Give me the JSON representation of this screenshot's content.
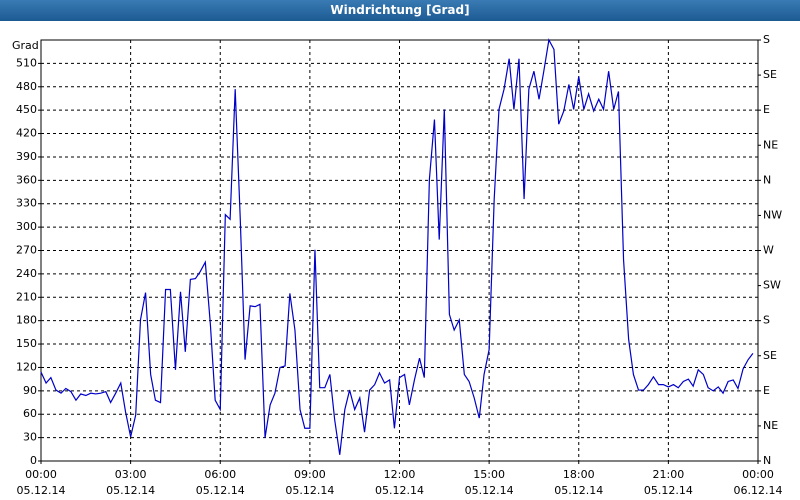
{
  "chart_data": {
    "type": "line",
    "title": "Windrichtung [Grad]",
    "ylabel": "Grad",
    "xlim": [
      0,
      24
    ],
    "xticks": [
      {
        "value": 0,
        "label": "00:00"
      },
      {
        "value": 3,
        "label": "03:00"
      },
      {
        "value": 6,
        "label": "06:00"
      },
      {
        "value": 9,
        "label": "09:00"
      },
      {
        "value": 12,
        "label": "12:00"
      },
      {
        "value": 15,
        "label": "15:00"
      },
      {
        "value": 18,
        "label": "18:00"
      },
      {
        "value": 21,
        "label": "21:00"
      },
      {
        "value": 24,
        "label": "00:00"
      }
    ],
    "xtick_dates": [
      "05.12.14",
      "05.12.14",
      "05.12.14",
      "05.12.14",
      "05.12.14",
      "05.12.14",
      "05.12.14",
      "05.12.14",
      "06.12.14"
    ],
    "ylim": [
      0,
      540
    ],
    "yticks": [
      0,
      30,
      60,
      90,
      120,
      150,
      180,
      210,
      240,
      270,
      300,
      330,
      360,
      390,
      420,
      450,
      480,
      510
    ],
    "y2lim": [
      0,
      540
    ],
    "y2ticks": [
      {
        "value": 0,
        "label": "N"
      },
      {
        "value": 45,
        "label": "NE"
      },
      {
        "value": 90,
        "label": "E"
      },
      {
        "value": 135,
        "label": "SE"
      },
      {
        "value": 180,
        "label": "S"
      },
      {
        "value": 225,
        "label": "SW"
      },
      {
        "value": 270,
        "label": "W"
      },
      {
        "value": 315,
        "label": "NW"
      },
      {
        "value": 360,
        "label": "N"
      },
      {
        "value": 405,
        "label": "NE"
      },
      {
        "value": 450,
        "label": "E"
      },
      {
        "value": 495,
        "label": "SE"
      },
      {
        "value": 540,
        "label": "S"
      }
    ],
    "grid": true,
    "color": "#0000c8",
    "x": [
      0,
      0.17,
      0.33,
      0.5,
      0.67,
      0.83,
      1,
      1.17,
      1.33,
      1.5,
      1.67,
      1.83,
      2,
      2.17,
      2.33,
      2.5,
      2.67,
      2.83,
      3,
      3.17,
      3.33,
      3.5,
      3.67,
      3.83,
      4,
      4.17,
      4.33,
      4.5,
      4.67,
      4.83,
      5,
      5.17,
      5.33,
      5.5,
      5.67,
      5.83,
      6,
      6.17,
      6.33,
      6.5,
      6.67,
      6.83,
      7,
      7.17,
      7.33,
      7.5,
      7.67,
      7.83,
      8,
      8.17,
      8.33,
      8.5,
      8.67,
      8.83,
      9,
      9.17,
      9.33,
      9.5,
      9.67,
      9.83,
      10,
      10.17,
      10.33,
      10.5,
      10.67,
      10.83,
      11,
      11.17,
      11.33,
      11.5,
      11.67,
      11.83,
      12,
      12.17,
      12.33,
      12.5,
      12.67,
      12.83,
      13,
      13.17,
      13.33,
      13.5,
      13.67,
      13.83,
      14,
      14.17,
      14.33,
      14.5,
      14.67,
      14.83,
      15,
      15.17,
      15.33,
      15.5,
      15.67,
      15.83,
      16,
      16.17,
      16.33,
      16.5,
      16.67,
      16.83,
      17,
      17.17,
      17.33,
      17.5,
      17.67,
      17.83,
      18,
      18.17,
      18.33,
      18.5,
      18.67,
      18.83,
      19,
      19.17,
      19.33,
      19.5,
      19.67,
      19.83,
      20,
      20.17,
      20.33,
      20.5,
      20.67,
      20.83,
      21,
      21.17,
      21.33,
      21.5,
      21.67,
      21.83,
      22,
      22.17,
      22.33,
      22.5,
      22.67,
      22.83,
      23,
      23.17,
      23.33,
      23.5,
      23.67,
      23.83
    ],
    "values": [
      114,
      100,
      107,
      91,
      87,
      93,
      89,
      78,
      86,
      84,
      87,
      86,
      87,
      89,
      75,
      87,
      100,
      63,
      31,
      59,
      181,
      216,
      111,
      78,
      75,
      220,
      220,
      117,
      217,
      140,
      233,
      234,
      243,
      255,
      175,
      78,
      66,
      316,
      310,
      477,
      310,
      130,
      199,
      198,
      201,
      30,
      72,
      87,
      120,
      122,
      215,
      168,
      66,
      42,
      42,
      271,
      94,
      94,
      111,
      53,
      8,
      66,
      91,
      66,
      81,
      37,
      91,
      98,
      113,
      100,
      104,
      42,
      107,
      111,
      72,
      104,
      132,
      107,
      361,
      438,
      284,
      451,
      188,
      168,
      181,
      111,
      102,
      81,
      55,
      111,
      143,
      336,
      451,
      477,
      516,
      451,
      516,
      336,
      477,
      500,
      464,
      500,
      540,
      528,
      432,
      449,
      483,
      451,
      493,
      451,
      471,
      449,
      464,
      451,
      500,
      451,
      474,
      258,
      156,
      111,
      91,
      91,
      98,
      108,
      98,
      98,
      95,
      98,
      94,
      102,
      105,
      96,
      117,
      111,
      94,
      90,
      95,
      87,
      102,
      104,
      93,
      118,
      130,
      138
    ]
  }
}
